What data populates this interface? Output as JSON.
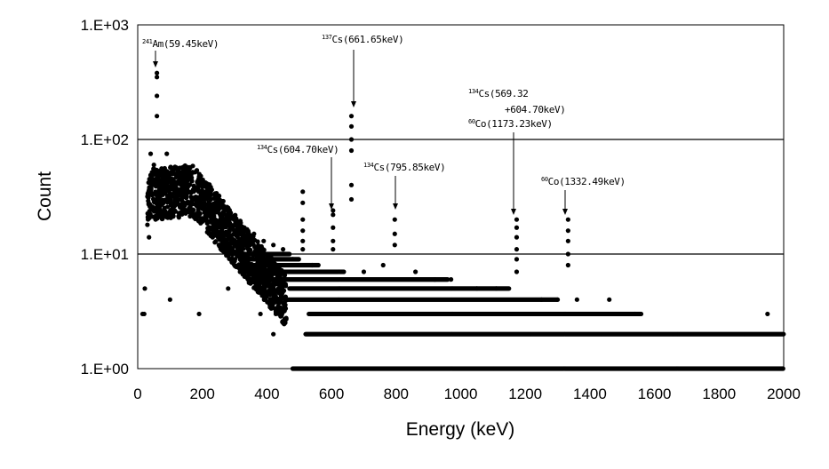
{
  "chart_data": {
    "type": "scatter",
    "title": "",
    "xlabel": "Energy (keV)",
    "ylabel": "Count",
    "xlim": [
      0,
      2000
    ],
    "ylim": [
      1,
      1000
    ],
    "y_scale": "log",
    "x_ticks": [
      "0",
      "200",
      "400",
      "600",
      "800",
      "1000",
      "1200",
      "1400",
      "1600",
      "1800",
      "2000"
    ],
    "y_ticks": [
      "1.E+00",
      "1.E+01",
      "1.E+02",
      "1.E+03"
    ],
    "grid": "horizontal at decades",
    "marker_color": "#000000",
    "annotations": [
      {
        "sup": "241",
        "text": "Am(59.45keV)",
        "x": 59.45,
        "y": 320
      },
      {
        "sup": "137",
        "text": "Cs(661.65keV)",
        "x": 661.65,
        "y": 160
      },
      {
        "sup": "134",
        "text": "Cs(604.70keV)",
        "x": 604.7,
        "y": 23
      },
      {
        "sup": "134",
        "text": "Cs(795.85keV)",
        "x": 795.85,
        "y": 20
      },
      {
        "sup": "134",
        "text": "Cs(569.32",
        "line2": "+604.70keV)",
        "x": 1173.23,
        "y": 20
      },
      {
        "sup": "60",
        "text": "Co(1173.23keV)",
        "x": 1173.23,
        "y": 20
      },
      {
        "sup": "60",
        "text": "Co(1332.49keV)",
        "x": 1332.49,
        "y": 20
      }
    ],
    "peaks": [
      {
        "x": 59.45,
        "values": [
          380,
          350,
          240,
          160
        ]
      },
      {
        "x": 661.65,
        "values": [
          160,
          130,
          100,
          80,
          40,
          30
        ]
      },
      {
        "x": 604.7,
        "values": [
          24,
          22,
          17,
          13,
          11
        ]
      },
      {
        "x": 795.85,
        "values": [
          20,
          15,
          12
        ]
      },
      {
        "x": 1173.23,
        "values": [
          20,
          17,
          14,
          11,
          9,
          7
        ]
      },
      {
        "x": 1332.49,
        "values": [
          20,
          16,
          13,
          10,
          8
        ]
      },
      {
        "x": 511,
        "values": [
          35,
          28,
          20,
          16,
          13,
          11
        ]
      }
    ],
    "continuum": [
      {
        "x": 15,
        "y": 3
      },
      {
        "x": 22,
        "y": 5
      },
      {
        "x": 30,
        "y": 18
      },
      {
        "x": 35,
        "y": 14
      },
      {
        "x": 40,
        "y": 75
      },
      {
        "x": 45,
        "y": 45
      },
      {
        "x": 50,
        "y": 60
      },
      {
        "x": 70,
        "y": 52
      },
      {
        "x": 90,
        "y": 75
      },
      {
        "x": 110,
        "y": 45
      },
      {
        "x": 130,
        "y": 42
      },
      {
        "x": 150,
        "y": 40
      },
      {
        "x": 180,
        "y": 38
      },
      {
        "x": 210,
        "y": 35
      },
      {
        "x": 240,
        "y": 28
      },
      {
        "x": 270,
        "y": 24
      },
      {
        "x": 300,
        "y": 20
      },
      {
        "x": 330,
        "y": 17
      },
      {
        "x": 360,
        "y": 15
      },
      {
        "x": 390,
        "y": 13
      },
      {
        "x": 420,
        "y": 12
      },
      {
        "x": 450,
        "y": 11
      },
      {
        "x": 480,
        "y": 9
      },
      {
        "x": 540,
        "y": 8
      },
      {
        "x": 700,
        "y": 7
      },
      {
        "x": 760,
        "y": 8
      },
      {
        "x": 860,
        "y": 7
      },
      {
        "x": 920,
        "y": 6
      },
      {
        "x": 970,
        "y": 6
      },
      {
        "x": 1050,
        "y": 5
      },
      {
        "x": 1110,
        "y": 5
      },
      {
        "x": 1250,
        "y": 4
      },
      {
        "x": 1300,
        "y": 4
      },
      {
        "x": 1360,
        "y": 4
      },
      {
        "x": 1460,
        "y": 4
      },
      {
        "x": 1540,
        "y": 3
      },
      {
        "x": 1950,
        "y": 3
      },
      {
        "x": 280,
        "y": 5
      },
      {
        "x": 380,
        "y": 3
      },
      {
        "x": 420,
        "y": 2
      },
      {
        "x": 20,
        "y": 3
      },
      {
        "x": 190,
        "y": 3
      },
      {
        "x": 100,
        "y": 4
      }
    ],
    "bands": [
      {
        "y": 1,
        "x_from": 480,
        "x_to": 2000
      },
      {
        "y": 2,
        "x_from": 520,
        "x_to": 2000
      },
      {
        "y": 3,
        "x_from": 530,
        "x_to": 1560
      },
      {
        "y": 4,
        "x_from": 460,
        "x_to": 1300
      },
      {
        "y": 5,
        "x_from": 470,
        "x_to": 1150
      },
      {
        "y": 6,
        "x_from": 360,
        "x_to": 960
      },
      {
        "y": 7,
        "x_from": 330,
        "x_to": 640
      },
      {
        "y": 8,
        "x_from": 320,
        "x_to": 560
      },
      {
        "y": 9,
        "x_from": 320,
        "x_to": 500
      },
      {
        "y": 10,
        "x_from": 310,
        "x_to": 470
      }
    ]
  }
}
